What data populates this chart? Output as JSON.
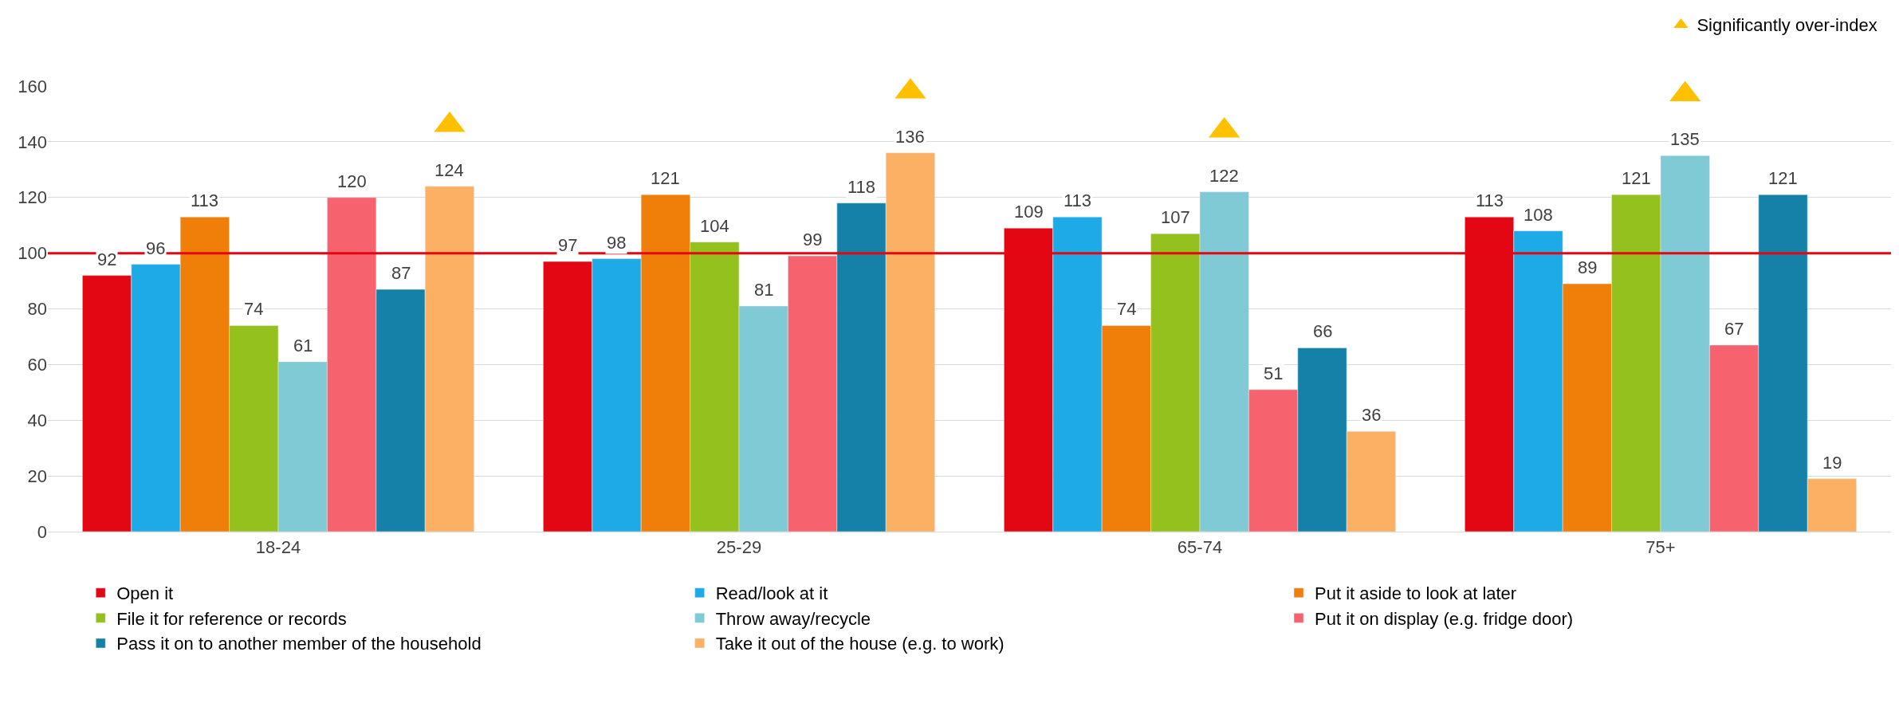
{
  "chart_data": {
    "type": "bar",
    "categories": [
      "18-24",
      "25-29",
      "65-74",
      "75+"
    ],
    "series": [
      {
        "name": "Open it",
        "color": "#e30613",
        "values": [
          92,
          97,
          109,
          113
        ],
        "value_labels": [
          "92",
          "97",
          "109",
          "113"
        ]
      },
      {
        "name": "Read/look at it",
        "color": "#1eaae7",
        "values": [
          96,
          98,
          113,
          108
        ],
        "value_labels": [
          "96",
          "98",
          "113",
          "108"
        ]
      },
      {
        "name": "Put it aside to look at later",
        "color": "#f07f09",
        "values": [
          113,
          121,
          74,
          89
        ],
        "value_labels": [
          "113",
          "121",
          "74",
          "89"
        ]
      },
      {
        "name": "File it for reference or records",
        "color": "#95c11f",
        "values": [
          74,
          104,
          107,
          121
        ],
        "value_labels": [
          "74",
          "104",
          "107",
          "121"
        ]
      },
      {
        "name": "Throw away/recycle",
        "color": "#7fcad4",
        "values": [
          61,
          81,
          122,
          135
        ],
        "value_labels": [
          "61",
          "81",
          "122",
          "135"
        ]
      },
      {
        "name": "Put it on display (e.g. fridge door)",
        "color": "#f6636e",
        "values": [
          120,
          99,
          51,
          67
        ],
        "value_labels": [
          "120",
          "99",
          "51",
          "67"
        ]
      },
      {
        "name": "Pass it on to another member of the household",
        "color": "#1581a8",
        "values": [
          87,
          118,
          66,
          121
        ],
        "value_labels": [
          "87",
          "118",
          "66",
          "121"
        ]
      },
      {
        "name": "Take it out of the house (e.g. to work)",
        "color": "#fbb063",
        "values": [
          124,
          136,
          36,
          19
        ],
        "value_labels": [
          "124",
          "136",
          "36",
          "19"
        ]
      },
      {
        "name": "Significantly over-index",
        "type": "scatter",
        "marker": "triangle",
        "color": "#ffc000",
        "values": [
          146,
          158,
          144,
          157
        ]
      }
    ],
    "ylim": [
      0,
      160
    ],
    "yticks": [
      0,
      20,
      40,
      60,
      80,
      100,
      120,
      140,
      160
    ],
    "grid": "y",
    "legend": "bottom",
    "ref_lines": [
      {
        "axis": "y",
        "value": 100,
        "label": null,
        "color": "#e30613"
      }
    ]
  }
}
